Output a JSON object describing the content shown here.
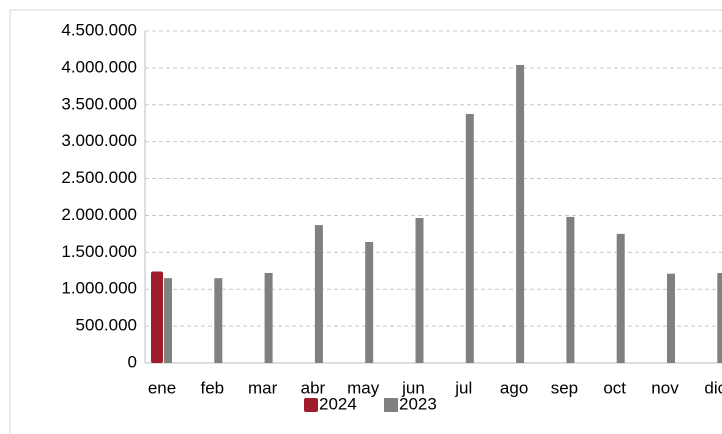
{
  "chart_data": {
    "type": "bar",
    "categories": [
      "ene",
      "feb",
      "mar",
      "abr",
      "may",
      "jun",
      "jul",
      "ago",
      "sep",
      "oct",
      "nov",
      "dic"
    ],
    "series": [
      {
        "name": "2024",
        "color": "#a11c2b",
        "values": [
          1240000,
          null,
          null,
          null,
          null,
          null,
          null,
          null,
          null,
          null,
          null,
          null
        ]
      },
      {
        "name": "2023",
        "color": "#808080",
        "values": [
          1150000,
          1150000,
          1220000,
          1870000,
          1640000,
          1965000,
          3375000,
          4040000,
          1980000,
          1750000,
          1210000,
          1220000
        ]
      }
    ],
    "ylim": [
      0,
      4500000
    ],
    "yticks": [
      0,
      {
        "value": 500000,
        "label": "500.000"
      },
      {
        "value": 1000000,
        "label": "1.000.000"
      },
      {
        "value": 1500000,
        "label": "1.500.000"
      },
      {
        "value": 2000000,
        "label": "2.000.000"
      },
      {
        "value": 2500000,
        "label": "2.500.000"
      },
      {
        "value": 3000000,
        "label": "3.000.000"
      },
      {
        "value": 3500000,
        "label": "3.500.000"
      },
      {
        "value": 4000000,
        "label": "4.000.000"
      },
      {
        "value": 4500000,
        "label": "4.500.000"
      }
    ],
    "grid": true,
    "legend": "bottom"
  }
}
